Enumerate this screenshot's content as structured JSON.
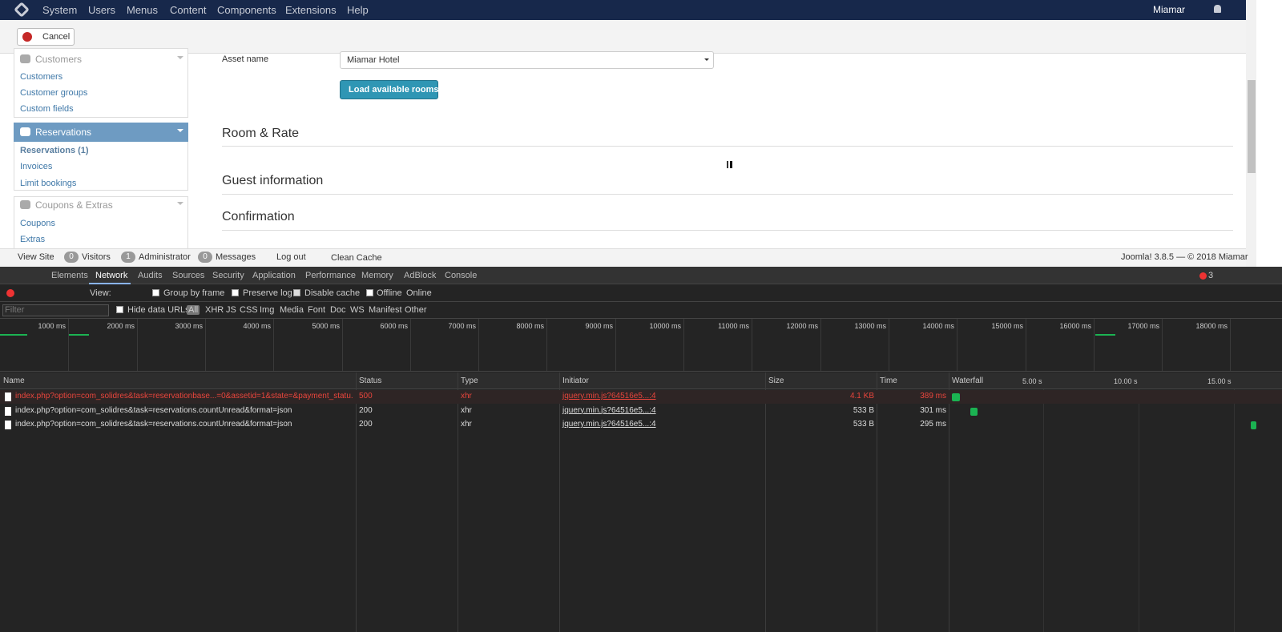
{
  "navbar": {
    "items": [
      "System",
      "Users",
      "Menus",
      "Content",
      "Components",
      "Extensions",
      "Help"
    ],
    "user": "Miamar"
  },
  "toolbar": {
    "cancel": "Cancel"
  },
  "sidebar": {
    "sections": [
      {
        "title": "Customers",
        "links": [
          "Customers",
          "Customer groups",
          "Custom fields"
        ]
      },
      {
        "title": "Reservations",
        "links": [
          "Reservations (1)",
          "Invoices",
          "Limit bookings"
        ]
      },
      {
        "title": "Coupons & Extras",
        "links": [
          "Coupons",
          "Extras"
        ]
      }
    ]
  },
  "form": {
    "asset_label": "Asset name",
    "asset_value": "Miamar Hotel",
    "load_button": "Load available rooms",
    "sections": [
      "Room & Rate",
      "Guest information",
      "Confirmation"
    ]
  },
  "statusbar": {
    "view_site": "View Site",
    "badges": [
      {
        "count": 0,
        "label": "Visitors"
      },
      {
        "count": 1,
        "label": "Administrator"
      },
      {
        "count": 0,
        "label": "Messages"
      }
    ],
    "logout": "Log out",
    "clean_cache": "Clean Cache",
    "version": "Joomla! 3.8.5 — © 2018 Miamar"
  },
  "devtools": {
    "tabs": [
      "Elements",
      "Network",
      "Audits",
      "Sources",
      "Security",
      "Application",
      "Performance",
      "Memory",
      "AdBlock",
      "Console"
    ],
    "error_count": 3,
    "view_label": "View:",
    "options": [
      "Group by frame",
      "Preserve log",
      "Disable cache",
      "Offline"
    ],
    "throttle": "Online",
    "filter_placeholder": "Filter",
    "hide_data_urls": "Hide data URLs",
    "filter_types": [
      "All",
      "XHR",
      "JS",
      "CSS",
      "Img",
      "Media",
      "Font",
      "Doc",
      "WS",
      "Manifest",
      "Other"
    ],
    "timeline_ticks": [
      "1000 ms",
      "2000 ms",
      "3000 ms",
      "4000 ms",
      "5000 ms",
      "6000 ms",
      "7000 ms",
      "8000 ms",
      "9000 ms",
      "10000 ms",
      "11000 ms",
      "12000 ms",
      "13000 ms",
      "14000 ms",
      "15000 ms",
      "16000 ms",
      "17000 ms",
      "18000 ms"
    ],
    "table": {
      "columns": [
        "Name",
        "Status",
        "Type",
        "Initiator",
        "Size",
        "Time",
        "Waterfall"
      ],
      "waterfall_ticks": [
        "5.00 s",
        "10.00 s",
        "15.00 s"
      ],
      "rows": [
        [
          "index.php?option=com_solidres&task=reservationbase...=0&assetid=1&state=&payment_statu...",
          500,
          "xhr",
          "jquery.min.js?64516e5...:4",
          "4.1 KB",
          "389 ms"
        ],
        [
          "index.php?option=com_solidres&task=reservations.countUnread&format=json",
          200,
          "xhr",
          "jquery.min.js?64516e5...:4",
          "533 B",
          "301 ms"
        ],
        [
          "index.php?option=com_solidres&task=reservations.countUnread&format=json",
          200,
          "xhr",
          "jquery.min.js?64516e5...:4",
          "533 B",
          "295 ms"
        ]
      ]
    }
  }
}
